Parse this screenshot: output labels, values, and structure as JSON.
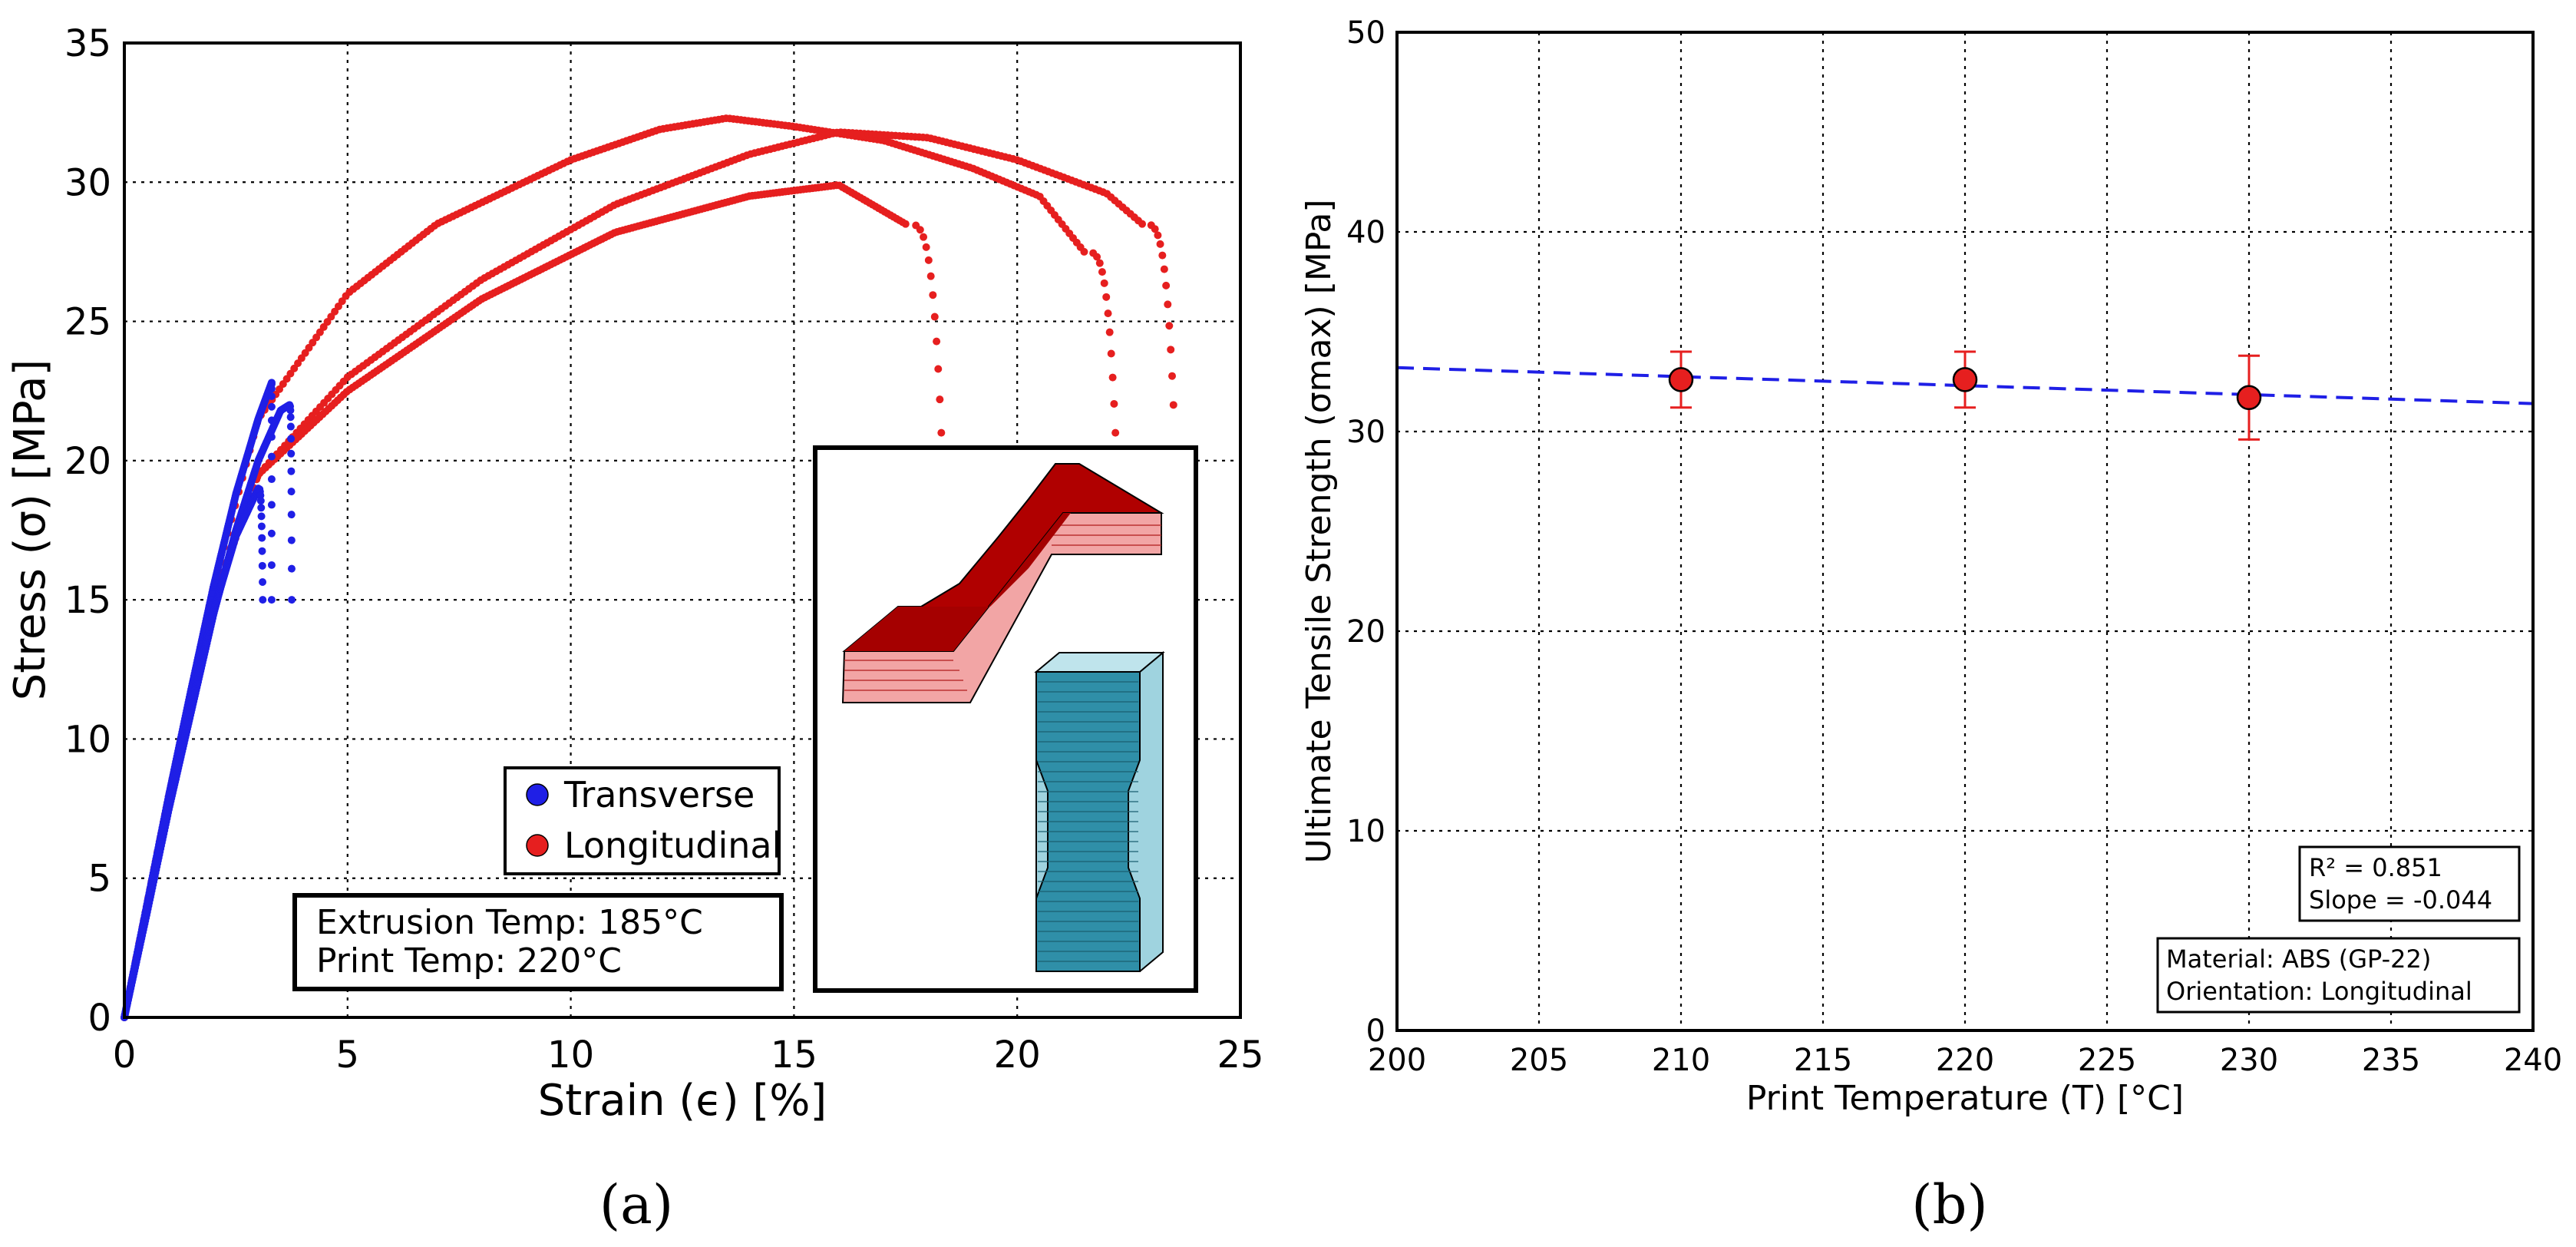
{
  "chart_data": [
    {
      "type": "scatter",
      "panel": "(a)",
      "xlabel": "Strain (ϵ) [%]",
      "ylabel": "Stress (σ) [MPa]",
      "xlim": [
        0,
        25
      ],
      "ylim": [
        0,
        35
      ],
      "xticks": [
        "0",
        "5",
        "10",
        "15",
        "20",
        "25"
      ],
      "yticks": [
        "0",
        "5",
        "10",
        "15",
        "20",
        "25",
        "30",
        "35"
      ],
      "grid": true,
      "legend_position": "lower-center",
      "legend": [
        {
          "label": "Transverse",
          "color": "#1f1fe6"
        },
        {
          "label": "Longitudinal",
          "color": "#e61f1f"
        }
      ],
      "series": [
        {
          "name": "Transverse",
          "color": "#1f1fe6",
          "curves": [
            {
              "x": [
                0,
                0.5,
                1,
                1.5,
                2,
                2.5,
                3,
                3.3
              ],
              "y": [
                0,
                4,
                8,
                11.8,
                15.5,
                18.8,
                21.5,
                22.8
              ],
              "drop_x": 3.3,
              "drop_y": [
                22.8,
                15
              ],
              "style": "dots"
            },
            {
              "x": [
                0,
                0.5,
                1,
                1.5,
                2,
                2.5,
                3,
                3.5,
                3.7
              ],
              "y": [
                0,
                3.7,
                7.5,
                11,
                14.5,
                17.5,
                20,
                21.8,
                22.0
              ],
              "drop_x": 3.75,
              "drop_y": [
                22.0,
                15
              ],
              "style": "dots"
            },
            {
              "x": [
                0,
                0.5,
                1,
                1.5,
                2,
                2.5,
                3.0
              ],
              "y": [
                0,
                3.8,
                7.6,
                11.2,
                14.6,
                17.3,
                19.0
              ],
              "drop_x": 3.1,
              "drop_y": [
                19.0,
                15
              ],
              "style": "dots"
            }
          ]
        },
        {
          "name": "Longitudinal",
          "color": "#e61f1f",
          "curves": [
            {
              "x": [
                0,
                1,
                2,
                3,
                5,
                7,
                10,
                12,
                13.5,
                15,
                17,
                19,
                20.5,
                21.5
              ],
              "y": [
                0,
                8,
                15.5,
                21.5,
                26,
                28.5,
                30.8,
                31.9,
                32.3,
                32.0,
                31.5,
                30.5,
                29.5,
                27.5
              ],
              "drop_x": 22.2,
              "drop_y": [
                27.5,
                21
              ],
              "style": "dots"
            },
            {
              "x": [
                0,
                1,
                2,
                3,
                5,
                8,
                11,
                14,
                16,
                18,
                20,
                22,
                22.8
              ],
              "y": [
                0,
                8,
                15,
                19.5,
                23,
                26.5,
                29.2,
                31,
                31.8,
                31.6,
                30.8,
                29.6,
                28.5
              ],
              "drop_x": 23.5,
              "drop_y": [
                28.5,
                22
              ],
              "style": "dots"
            },
            {
              "x": [
                0,
                1,
                2,
                3,
                5,
                8,
                11,
                14,
                16,
                17.5
              ],
              "y": [
                0,
                8,
                15,
                19.5,
                22.5,
                25.8,
                28.2,
                29.5,
                29.9,
                28.5
              ],
              "drop_x": 18.3,
              "drop_y": [
                28.5,
                21
              ],
              "style": "dots"
            }
          ]
        }
      ],
      "annotations": [
        "Extrusion Temp: 185°C",
        "Print Temp: 220°C"
      ],
      "inset": "tensile specimen orientation illustration"
    },
    {
      "type": "scatter",
      "panel": "(b)",
      "xlabel": "Print Temperature (T) [°C]",
      "ylabel": "Ultimate Tensile Strength (σmax) [MPa]",
      "xlim": [
        200,
        240
      ],
      "ylim": [
        0,
        50
      ],
      "xticks": [
        "200",
        "205",
        "210",
        "215",
        "220",
        "225",
        "230",
        "235",
        "240"
      ],
      "yticks": [
        "0",
        "10",
        "20",
        "30",
        "40",
        "50"
      ],
      "grid": true,
      "points": {
        "x": [
          210,
          220,
          230
        ],
        "y": [
          32.6,
          32.6,
          31.7
        ],
        "err": [
          1.4,
          1.4,
          2.1
        ],
        "color": "#e61f1f"
      },
      "fit_line": {
        "x": [
          200,
          240
        ],
        "y": [
          33.2,
          31.4
        ],
        "color": "#1f1fe6",
        "style": "dashed"
      },
      "annotations": {
        "r2": "R² = 0.851",
        "slope": "Slope = -0.044",
        "material": "Material: ABS (GP-22)",
        "orientation": "Orientation: Longitudinal"
      }
    }
  ],
  "captions": {
    "a": "(a)",
    "b": "(b)"
  }
}
